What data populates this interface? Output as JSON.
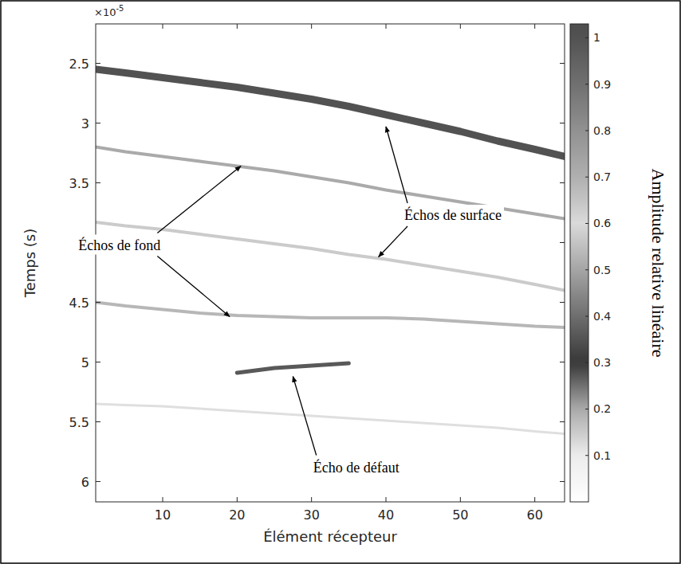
{
  "chart_data": {
    "type": "line",
    "x_label": "Élément récepteur",
    "y_label": "Temps (s)",
    "y_multiplier": {
      "base": "×10",
      "exponent": "-5"
    },
    "x": [
      1,
      5,
      10,
      15,
      20,
      25,
      30,
      35,
      40,
      45,
      50,
      55,
      60,
      64
    ],
    "xlim": [
      1,
      64
    ],
    "xticks": [
      10,
      20,
      30,
      40,
      50,
      60
    ],
    "ylim": [
      2.17e-05,
      6.17e-05
    ],
    "yticks": [
      {
        "value": 2.5e-05,
        "label": "2.5"
      },
      {
        "value": 3e-05,
        "label": "3"
      },
      {
        "value": 3.5e-05,
        "label": "3.5"
      },
      {
        "value": 4e-05,
        "label": "4"
      },
      {
        "value": 4.5e-05,
        "label": "4.5"
      },
      {
        "value": 5e-05,
        "label": "5"
      },
      {
        "value": 5.5e-05,
        "label": "5.5"
      },
      {
        "value": 6e-05,
        "label": "6"
      }
    ],
    "grid": false,
    "series": [
      {
        "amplitude": 1.0,
        "values": [
          2.55e-05,
          2.58e-05,
          2.62e-05,
          2.66e-05,
          2.7e-05,
          2.75e-05,
          2.8e-05,
          2.86e-05,
          2.93e-05,
          3e-05,
          3.07e-05,
          3.15e-05,
          3.22e-05,
          3.28e-05
        ]
      },
      {
        "amplitude": 0.2,
        "values": [
          3.2e-05,
          3.24e-05,
          3.28e-05,
          3.32e-05,
          3.36e-05,
          3.4e-05,
          3.45e-05,
          3.5e-05,
          3.56e-05,
          3.61e-05,
          3.66e-05,
          3.71e-05,
          3.76e-05,
          3.8e-05
        ]
      },
      {
        "amplitude": 0.15,
        "values": [
          3.83e-05,
          3.86e-05,
          3.89e-05,
          3.93e-05,
          3.97e-05,
          4.01e-05,
          4.05e-05,
          4.1e-05,
          4.14e-05,
          4.19e-05,
          4.24e-05,
          4.29e-05,
          4.35e-05,
          4.4e-05
        ]
      },
      {
        "amplitude": 0.18,
        "values": [
          4.5e-05,
          4.53e-05,
          4.56e-05,
          4.59e-05,
          4.61e-05,
          4.62e-05,
          4.63e-05,
          4.63e-05,
          4.63e-05,
          4.64e-05,
          4.66e-05,
          4.68e-05,
          4.7e-05,
          4.71e-05
        ]
      },
      {
        "amplitude": 0.27,
        "values": [
          null,
          null,
          null,
          null,
          5.09e-05,
          5.05e-05,
          5.03e-05,
          5.01e-05,
          null,
          null,
          null,
          null,
          null,
          null
        ]
      },
      {
        "amplitude": 0.12,
        "values": [
          5.35e-05,
          5.36e-05,
          5.37e-05,
          5.39e-05,
          5.41e-05,
          5.43e-05,
          5.45e-05,
          5.47e-05,
          5.49e-05,
          5.51e-05,
          5.53e-05,
          5.55e-05,
          5.58e-05,
          5.6e-05
        ]
      }
    ],
    "colorbar": {
      "label": "Amplitude relative linéaire",
      "range": [
        0,
        1.03
      ],
      "ticks": [
        0.1,
        0.2,
        0.3,
        0.4,
        0.5,
        0.6,
        0.7,
        0.8,
        0.9,
        1
      ]
    },
    "annotations": [
      {
        "text": "Échos de fond",
        "x": 4.2,
        "y": 4.02e-05,
        "arrows": [
          [
            20.5,
            3.36e-05
          ],
          [
            19,
            4.62e-05
          ]
        ]
      },
      {
        "text": "Échos de surface",
        "x": 49,
        "y": 3.77e-05,
        "arrows": [
          [
            40,
            3.03e-05
          ],
          [
            39,
            4.12e-05
          ]
        ]
      },
      {
        "text": "Écho de défaut",
        "x": 36,
        "y": 5.88e-05,
        "arrows": [
          [
            27.5,
            5.12e-05
          ]
        ]
      }
    ]
  }
}
